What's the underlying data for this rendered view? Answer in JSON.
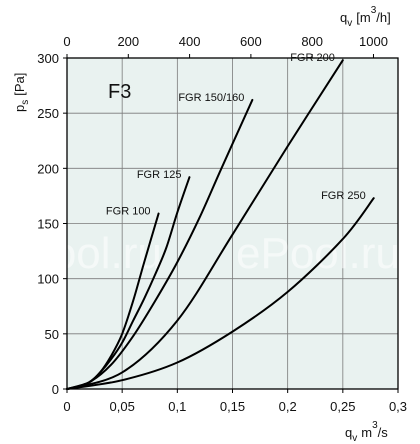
{
  "chart_data": {
    "type": "line",
    "title": "F3",
    "x_primary": {
      "label_main": "q",
      "label_sub": "v",
      "label_rest": "m",
      "label_sup": "3",
      "label_tail": "/s",
      "range": [
        0,
        0.3
      ],
      "ticks": [
        {
          "v": 0,
          "t": "0"
        },
        {
          "v": 0.05,
          "t": "0,05"
        },
        {
          "v": 0.1,
          "t": "0,1"
        },
        {
          "v": 0.15,
          "t": "0,15"
        },
        {
          "v": 0.2,
          "t": "0,2"
        },
        {
          "v": 0.25,
          "t": "0,25"
        },
        {
          "v": 0.3,
          "t": "0,3"
        }
      ]
    },
    "x_secondary": {
      "label_main": "q",
      "label_sub": "v",
      "label_rest": "[m",
      "label_sup": "3",
      "label_tail": "/h]",
      "range": [
        0,
        1080
      ],
      "ticks": [
        {
          "v": 0,
          "t": "0"
        },
        {
          "v": 200,
          "t": "200"
        },
        {
          "v": 400,
          "t": "400"
        },
        {
          "v": 600,
          "t": "600"
        },
        {
          "v": 800,
          "t": "800"
        },
        {
          "v": 1000,
          "t": "1000"
        }
      ]
    },
    "y": {
      "label_main": "p",
      "label_sub": "s",
      "label_rest": "[Pa]",
      "range": [
        0,
        300
      ],
      "ticks": [
        {
          "v": 0,
          "t": "0"
        },
        {
          "v": 50,
          "t": "50"
        },
        {
          "v": 100,
          "t": "100"
        },
        {
          "v": 150,
          "t": "150"
        },
        {
          "v": 200,
          "t": "200"
        },
        {
          "v": 250,
          "t": "250"
        },
        {
          "v": 300,
          "t": "300"
        }
      ]
    },
    "grid": true,
    "series": [
      {
        "name": "FGR 100",
        "x": [
          0,
          0.01,
          0.02,
          0.03,
          0.04,
          0.05,
          0.06,
          0.07,
          0.083
        ],
        "y": [
          0,
          2,
          6,
          15,
          30,
          50,
          80,
          115,
          159
        ]
      },
      {
        "name": "FGR 125",
        "x": [
          0,
          0.02,
          0.03,
          0.04,
          0.05,
          0.06,
          0.07,
          0.08,
          0.09,
          0.1,
          0.111
        ],
        "y": [
          0,
          6,
          15,
          27,
          42,
          62,
          82,
          104,
          128,
          160,
          192
        ]
      },
      {
        "name": "FGR 150/160",
        "x": [
          0,
          0.02,
          0.04,
          0.06,
          0.08,
          0.1,
          0.12,
          0.14,
          0.168
        ],
        "y": [
          0,
          6,
          22,
          48,
          80,
          115,
          155,
          200,
          262
        ]
      },
      {
        "name": "FGR 200",
        "x": [
          0,
          0.05,
          0.1,
          0.15,
          0.2,
          0.25
        ],
        "y": [
          0,
          15,
          62,
          140,
          220,
          298
        ]
      },
      {
        "name": "FGR 250",
        "x": [
          0,
          0.05,
          0.1,
          0.15,
          0.2,
          0.25,
          0.278
        ],
        "y": [
          0,
          8,
          24,
          52,
          88,
          136,
          173
        ]
      }
    ]
  },
  "watermark": "ePool.ru"
}
